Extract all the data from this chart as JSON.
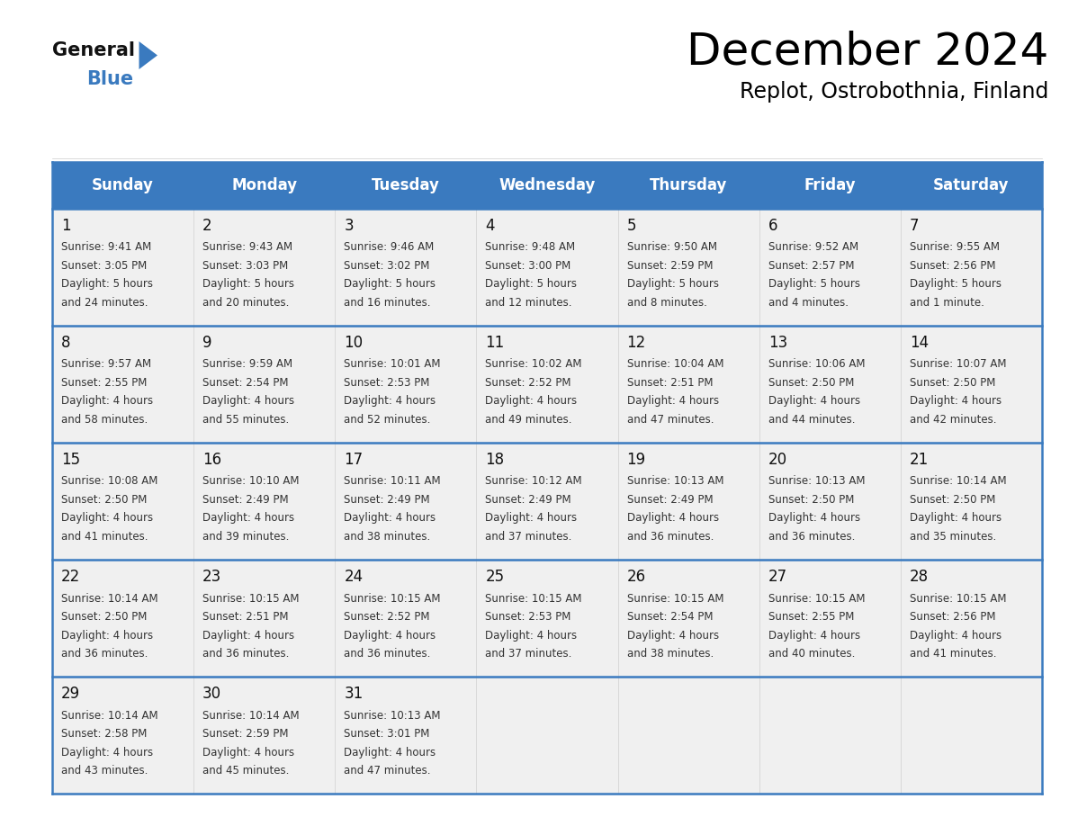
{
  "title": "December 2024",
  "subtitle": "Replot, Ostrobothnia, Finland",
  "header_color": "#3a7abf",
  "header_text_color": "#ffffff",
  "cell_bg": "#f0f0f0",
  "separator_color": "#3a7abf",
  "text_color": "#333333",
  "day_num_color": "#111111",
  "days_of_week": [
    "Sunday",
    "Monday",
    "Tuesday",
    "Wednesday",
    "Thursday",
    "Friday",
    "Saturday"
  ],
  "weeks": [
    [
      {
        "day": 1,
        "sunrise": "9:41 AM",
        "sunset": "3:05 PM",
        "daylight_l1": "5 hours",
        "daylight_l2": "and 24 minutes."
      },
      {
        "day": 2,
        "sunrise": "9:43 AM",
        "sunset": "3:03 PM",
        "daylight_l1": "5 hours",
        "daylight_l2": "and 20 minutes."
      },
      {
        "day": 3,
        "sunrise": "9:46 AM",
        "sunset": "3:02 PM",
        "daylight_l1": "5 hours",
        "daylight_l2": "and 16 minutes."
      },
      {
        "day": 4,
        "sunrise": "9:48 AM",
        "sunset": "3:00 PM",
        "daylight_l1": "5 hours",
        "daylight_l2": "and 12 minutes."
      },
      {
        "day": 5,
        "sunrise": "9:50 AM",
        "sunset": "2:59 PM",
        "daylight_l1": "5 hours",
        "daylight_l2": "and 8 minutes."
      },
      {
        "day": 6,
        "sunrise": "9:52 AM",
        "sunset": "2:57 PM",
        "daylight_l1": "5 hours",
        "daylight_l2": "and 4 minutes."
      },
      {
        "day": 7,
        "sunrise": "9:55 AM",
        "sunset": "2:56 PM",
        "daylight_l1": "5 hours",
        "daylight_l2": "and 1 minute."
      }
    ],
    [
      {
        "day": 8,
        "sunrise": "9:57 AM",
        "sunset": "2:55 PM",
        "daylight_l1": "4 hours",
        "daylight_l2": "and 58 minutes."
      },
      {
        "day": 9,
        "sunrise": "9:59 AM",
        "sunset": "2:54 PM",
        "daylight_l1": "4 hours",
        "daylight_l2": "and 55 minutes."
      },
      {
        "day": 10,
        "sunrise": "10:01 AM",
        "sunset": "2:53 PM",
        "daylight_l1": "4 hours",
        "daylight_l2": "and 52 minutes."
      },
      {
        "day": 11,
        "sunrise": "10:02 AM",
        "sunset": "2:52 PM",
        "daylight_l1": "4 hours",
        "daylight_l2": "and 49 minutes."
      },
      {
        "day": 12,
        "sunrise": "10:04 AM",
        "sunset": "2:51 PM",
        "daylight_l1": "4 hours",
        "daylight_l2": "and 47 minutes."
      },
      {
        "day": 13,
        "sunrise": "10:06 AM",
        "sunset": "2:50 PM",
        "daylight_l1": "4 hours",
        "daylight_l2": "and 44 minutes."
      },
      {
        "day": 14,
        "sunrise": "10:07 AM",
        "sunset": "2:50 PM",
        "daylight_l1": "4 hours",
        "daylight_l2": "and 42 minutes."
      }
    ],
    [
      {
        "day": 15,
        "sunrise": "10:08 AM",
        "sunset": "2:50 PM",
        "daylight_l1": "4 hours",
        "daylight_l2": "and 41 minutes."
      },
      {
        "day": 16,
        "sunrise": "10:10 AM",
        "sunset": "2:49 PM",
        "daylight_l1": "4 hours",
        "daylight_l2": "and 39 minutes."
      },
      {
        "day": 17,
        "sunrise": "10:11 AM",
        "sunset": "2:49 PM",
        "daylight_l1": "4 hours",
        "daylight_l2": "and 38 minutes."
      },
      {
        "day": 18,
        "sunrise": "10:12 AM",
        "sunset": "2:49 PM",
        "daylight_l1": "4 hours",
        "daylight_l2": "and 37 minutes."
      },
      {
        "day": 19,
        "sunrise": "10:13 AM",
        "sunset": "2:49 PM",
        "daylight_l1": "4 hours",
        "daylight_l2": "and 36 minutes."
      },
      {
        "day": 20,
        "sunrise": "10:13 AM",
        "sunset": "2:50 PM",
        "daylight_l1": "4 hours",
        "daylight_l2": "and 36 minutes."
      },
      {
        "day": 21,
        "sunrise": "10:14 AM",
        "sunset": "2:50 PM",
        "daylight_l1": "4 hours",
        "daylight_l2": "and 35 minutes."
      }
    ],
    [
      {
        "day": 22,
        "sunrise": "10:14 AM",
        "sunset": "2:50 PM",
        "daylight_l1": "4 hours",
        "daylight_l2": "and 36 minutes."
      },
      {
        "day": 23,
        "sunrise": "10:15 AM",
        "sunset": "2:51 PM",
        "daylight_l1": "4 hours",
        "daylight_l2": "and 36 minutes."
      },
      {
        "day": 24,
        "sunrise": "10:15 AM",
        "sunset": "2:52 PM",
        "daylight_l1": "4 hours",
        "daylight_l2": "and 36 minutes."
      },
      {
        "day": 25,
        "sunrise": "10:15 AM",
        "sunset": "2:53 PM",
        "daylight_l1": "4 hours",
        "daylight_l2": "and 37 minutes."
      },
      {
        "day": 26,
        "sunrise": "10:15 AM",
        "sunset": "2:54 PM",
        "daylight_l1": "4 hours",
        "daylight_l2": "and 38 minutes."
      },
      {
        "day": 27,
        "sunrise": "10:15 AM",
        "sunset": "2:55 PM",
        "daylight_l1": "4 hours",
        "daylight_l2": "and 40 minutes."
      },
      {
        "day": 28,
        "sunrise": "10:15 AM",
        "sunset": "2:56 PM",
        "daylight_l1": "4 hours",
        "daylight_l2": "and 41 minutes."
      }
    ],
    [
      {
        "day": 29,
        "sunrise": "10:14 AM",
        "sunset": "2:58 PM",
        "daylight_l1": "4 hours",
        "daylight_l2": "and 43 minutes."
      },
      {
        "day": 30,
        "sunrise": "10:14 AM",
        "sunset": "2:59 PM",
        "daylight_l1": "4 hours",
        "daylight_l2": "and 45 minutes."
      },
      {
        "day": 31,
        "sunrise": "10:13 AM",
        "sunset": "3:01 PM",
        "daylight_l1": "4 hours",
        "daylight_l2": "and 47 minutes."
      },
      null,
      null,
      null,
      null
    ]
  ]
}
